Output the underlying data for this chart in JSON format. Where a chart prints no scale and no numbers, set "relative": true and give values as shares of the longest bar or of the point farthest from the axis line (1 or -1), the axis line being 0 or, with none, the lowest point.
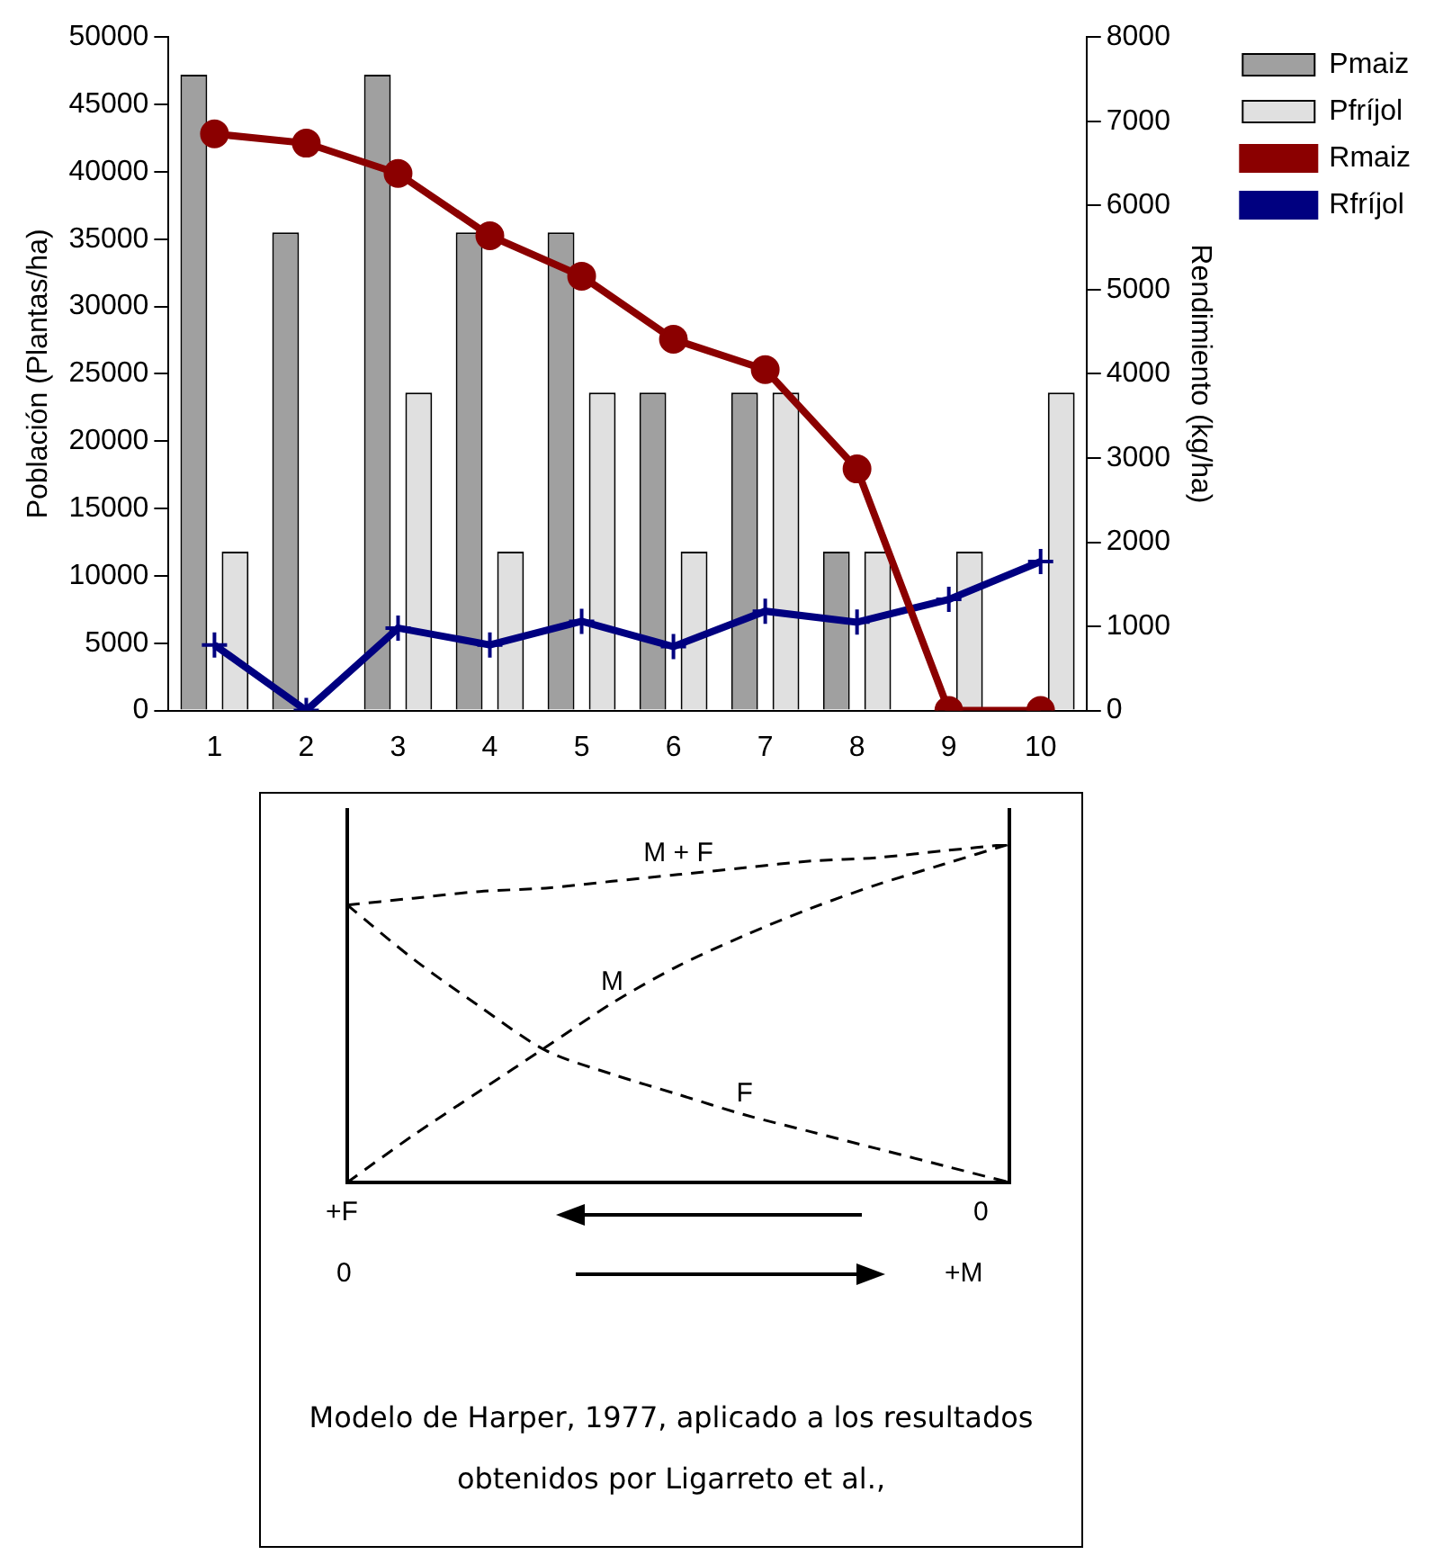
{
  "chart_data": [
    {
      "type": "bar",
      "categories": [
        "1",
        "2",
        "3",
        "4",
        "5",
        "6",
        "7",
        "8",
        "9",
        "10"
      ],
      "ylabel": "Población (Plantas/ha)",
      "y2label": "Rendimiento (kg/ha)",
      "series": [
        {
          "name": "Pmaiz",
          "color": "#a0a0a0",
          "values": [
            47200,
            35500,
            47200,
            35500,
            35500,
            23600,
            23600,
            11800,
            0,
            0
          ]
        },
        {
          "name": "Pfríjol",
          "color": "#e0e0e0",
          "values": [
            11800,
            0,
            23600,
            11800,
            23600,
            11800,
            23600,
            11800,
            11800,
            23600
          ]
        },
        {
          "name": "Rmaiz",
          "type": "line",
          "axis": "y2",
          "color": "#8b0000",
          "marker": "circle",
          "values": [
            6850,
            6740,
            6380,
            5640,
            5160,
            4410,
            4050,
            2870,
            0,
            0
          ]
        },
        {
          "name": "Rfríjol",
          "type": "line",
          "axis": "y2",
          "color": "#000080",
          "marker": "cross",
          "values": [
            780,
            0,
            980,
            780,
            1060,
            760,
            1180,
            1050,
            1320,
            1770
          ]
        }
      ],
      "ylim": [
        0,
        50000
      ],
      "yticks": [
        0,
        5000,
        10000,
        15000,
        20000,
        25000,
        30000,
        35000,
        40000,
        45000,
        50000
      ],
      "y2lim": [
        0,
        8000
      ],
      "y2ticks": [
        0,
        1000,
        2000,
        3000,
        4000,
        5000,
        6000,
        7000,
        8000
      ],
      "grid": false,
      "legend": "top right"
    },
    {
      "type": "line",
      "relative": true,
      "categories": [
        null,
        null,
        null,
        null,
        null,
        null,
        null,
        null,
        null,
        null,
        null
      ],
      "line_style": "dashed",
      "marker": "none",
      "legend": false,
      "series": [
        {
          "name": "M + F",
          "color": "#000000",
          "values": [
            0.82,
            0.84,
            0.86,
            0.87,
            0.89,
            0.91,
            0.93,
            0.95,
            0.96,
            0.98,
            1.0
          ]
        },
        {
          "name": "M",
          "color": "#000000",
          "values": [
            0,
            0.14,
            0.27,
            0.4,
            0.53,
            0.64,
            0.73,
            0.81,
            0.88,
            0.94,
            1.0
          ]
        },
        {
          "name": "F",
          "color": "#000000",
          "values": [
            0.82,
            0.66,
            0.52,
            0.39,
            0.32,
            0.26,
            0.2,
            0.15,
            0.1,
            0.05,
            0
          ]
        }
      ],
      "annotations": [
        "+F",
        "0",
        "0",
        "+M",
        "Modelo de Harper, 1977, aplicado a los resultados obtenidos por Ligarreto et al.,"
      ]
    }
  ]
}
